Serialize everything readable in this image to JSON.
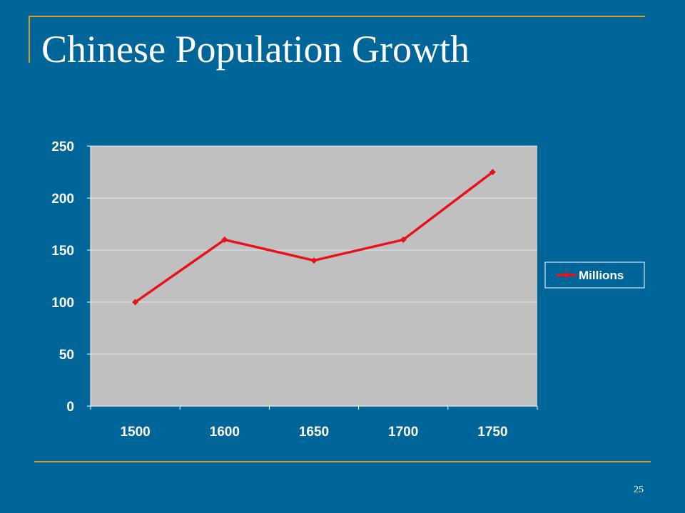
{
  "slide": {
    "title": "Chinese Population Growth",
    "page_number": "25"
  },
  "colors": {
    "background": "#006699",
    "accent_rule": "#C9A227",
    "plot_area": "#C0C0C0",
    "series_line": "#E8121A",
    "text": "#ffffff"
  },
  "chart_data": {
    "type": "line",
    "categories": [
      "1500",
      "1600",
      "1650",
      "1700",
      "1750"
    ],
    "series": [
      {
        "name": "Millions",
        "values": [
          100,
          160,
          140,
          160,
          225
        ]
      }
    ],
    "ylim": [
      0,
      250
    ],
    "yticks": [
      0,
      50,
      100,
      150,
      200,
      250
    ],
    "grid": true,
    "legend": "right",
    "title": "",
    "xlabel": "",
    "ylabel": ""
  }
}
